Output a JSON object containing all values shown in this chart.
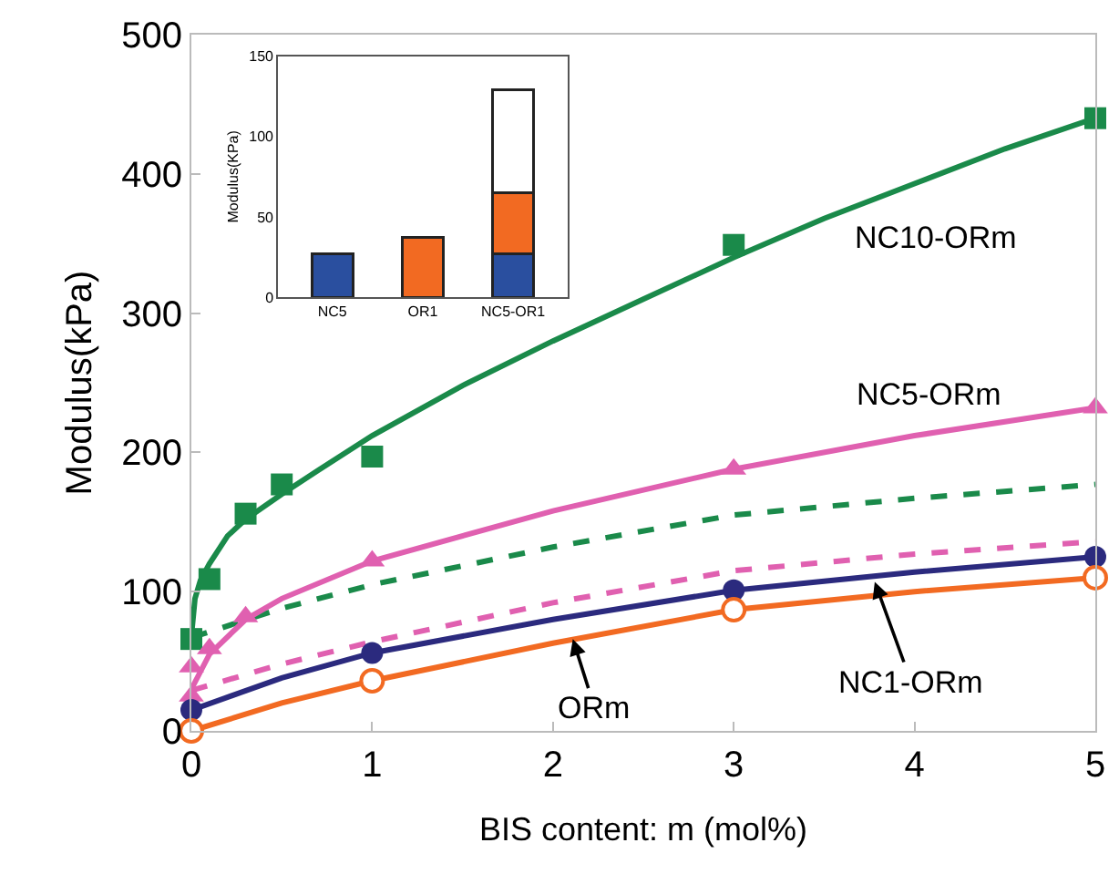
{
  "chart_data": [
    {
      "type": "scatter",
      "xlabel": "BIS content: m (mol%)",
      "ylabel": "Modulus(kPa)",
      "xlim": [
        0,
        5
      ],
      "ylim": [
        0,
        500
      ],
      "xticks": [
        0,
        1,
        2,
        3,
        4,
        5
      ],
      "yticks": [
        0,
        100,
        200,
        300,
        400,
        500
      ],
      "series": [
        {
          "type": "line",
          "color": "#1a8a4a",
          "line_style": "dashed",
          "x": [
            0,
            0.5,
            1,
            2,
            3,
            4,
            5
          ],
          "values": [
            67,
            88,
            105,
            132,
            155,
            167,
            177
          ]
        },
        {
          "type": "line",
          "color": "#e060b0",
          "line_style": "dashed",
          "x": [
            0,
            0.5,
            1,
            2,
            3,
            4,
            5
          ],
          "values": [
            29,
            48,
            64,
            92,
            115,
            127,
            136
          ]
        },
        {
          "type": "line",
          "color": "#1a8a4a",
          "line_style": "solid",
          "x": [
            0,
            0.02,
            0.05,
            0.1,
            0.2,
            0.3,
            0.5,
            0.7,
            1,
            1.5,
            2,
            2.5,
            3,
            3.5,
            4,
            4.5,
            5
          ],
          "values": [
            68,
            95,
            108,
            120,
            140,
            152,
            170,
            187,
            212,
            248,
            280,
            310,
            340,
            368,
            393,
            418,
            440
          ]
        },
        {
          "type": "line",
          "color": "#e060b0",
          "line_style": "solid",
          "x": [
            0,
            0.1,
            0.3,
            0.5,
            1,
            2,
            3,
            4,
            5
          ],
          "values": [
            30,
            55,
            80,
            95,
            122,
            158,
            188,
            212,
            232
          ]
        },
        {
          "type": "line",
          "color": "#2b2a7e",
          "line_style": "solid",
          "x": [
            0,
            0.5,
            1,
            2,
            3,
            4,
            5
          ],
          "values": [
            15,
            38,
            56,
            80,
            101,
            114,
            125
          ]
        },
        {
          "type": "line",
          "color": "#f26a22",
          "line_style": "solid",
          "x": [
            0,
            0.5,
            1,
            2,
            3,
            4,
            5
          ],
          "values": [
            0,
            20,
            36,
            63,
            87,
            100,
            110
          ]
        },
        {
          "type": "scatter",
          "color": "#1a8a4a",
          "marker": "square",
          "x": [
            0,
            0.1,
            0.3,
            0.5,
            1,
            3,
            5
          ],
          "values": [
            66,
            109,
            156,
            177,
            197,
            349,
            440
          ]
        },
        {
          "type": "scatter",
          "color": "#e060b0",
          "marker": "triangle",
          "x": [
            0,
            0,
            0.1,
            0.3,
            1,
            3,
            5
          ],
          "values": [
            25,
            46,
            59,
            82,
            122,
            188,
            232
          ]
        },
        {
          "type": "scatter",
          "color": "#2b2a7e",
          "marker": "circle",
          "x": [
            0,
            1,
            3,
            5
          ],
          "values": [
            15,
            56,
            101,
            125
          ]
        },
        {
          "type": "scatter",
          "color": "#f26a22",
          "marker": "circle-open",
          "x": [
            0,
            1,
            3,
            5
          ],
          "values": [
            0,
            36,
            87,
            110
          ]
        }
      ],
      "annotations": [
        "NC10-ORm",
        "NC5-ORm",
        {
          "text": "NC1-ORm",
          "x": 3.78,
          "y": 107
        },
        {
          "text": "ORm",
          "x": 2.11,
          "y": 66
        }
      ]
    },
    {
      "type": "bar",
      "stacked": true,
      "categories": [
        "NC5",
        "OR1",
        "NC5-OR1"
      ],
      "ylabel": "Modulus(KPa)",
      "ylim": [
        0,
        150
      ],
      "yticks": [
        0,
        50,
        100,
        150
      ],
      "series": [
        {
          "color": "#2a4f9f",
          "values": [
            27,
            null,
            27
          ]
        },
        {
          "color": "#f26a22",
          "values": [
            null,
            37,
            38
          ]
        },
        {
          "color": "#ffffff",
          "values": [
            null,
            null,
            64
          ]
        }
      ]
    }
  ]
}
